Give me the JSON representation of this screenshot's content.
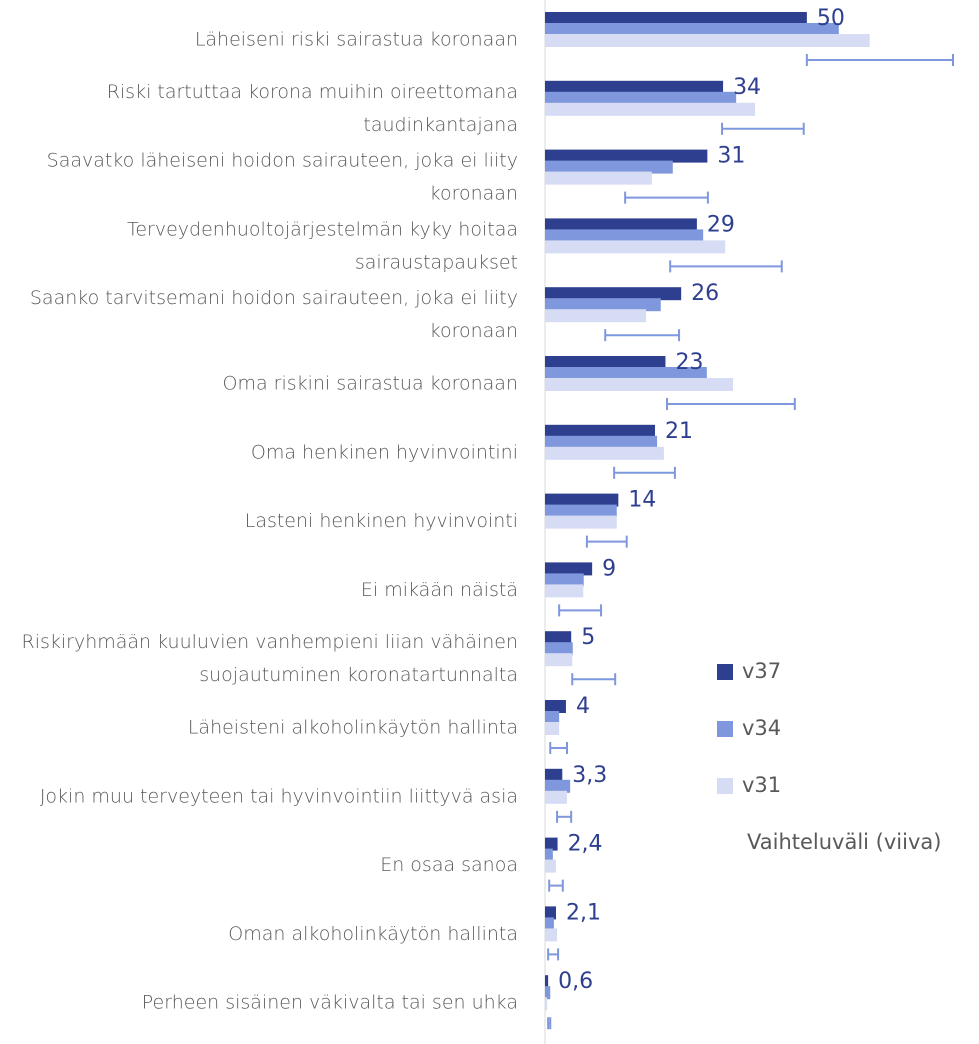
{
  "chart_data": {
    "type": "hbar",
    "categories": [
      "Läheiseni riski sairastua koronaan",
      "Riski tartuttaa korona muihin oireettomana taudinkantajana",
      "Saavatko läheiseni hoidon sairauteen, joka ei liity koronaan",
      "Terveydenhuoltojärjestelmän kyky hoitaa sairaustapaukset",
      "Saanko tarvitsemani hoidon sairauteen, joka ei liity koronaan",
      "Oma riskini sairastua koronaan",
      "Oma henkinen hyvinvointini",
      "Lasteni henkinen hyvinvointi",
      "Ei mikään näistä",
      "Riskiryhmään kuuluvien vanhempieni liian vähäinen suojautuminen koronatartunnalta",
      "Läheisteni alkoholinkäytön hallinta",
      "Jokin muu terveyteen tai hyvinvointiin liittyvä asia",
      "En osaa sanoa",
      "Oman alkoholinkäytön hallinta",
      "Perheen sisäinen väkivalta tai sen uhka"
    ],
    "series": [
      {
        "name": "v37",
        "color": "#2e3f8f",
        "values": [
          50,
          34,
          31,
          29,
          26,
          23,
          21,
          14,
          9,
          5,
          4,
          3.3,
          2.4,
          2.1,
          0.6
        ],
        "value_labels": [
          "50",
          "34",
          "31",
          "29",
          "26",
          "23",
          "21",
          "14",
          "9",
          "5",
          "4",
          "3,3",
          "2,4",
          "2,1",
          "0,6"
        ]
      },
      {
        "name": "v34",
        "color": "#7f97dc",
        "values": [
          56.1,
          36.5,
          24.4,
          30.2,
          22.1,
          30.9,
          21.4,
          13.7,
          7.4,
          5.3,
          2.7,
          4.8,
          1.5,
          1.7,
          1.0
        ]
      },
      {
        "name": "v31",
        "color": "#d5dcf3",
        "values": [
          62.0,
          40.1,
          20.4,
          34.4,
          19.3,
          35.9,
          22.7,
          13.7,
          7.3,
          5.2,
          2.7,
          4.2,
          2.1,
          2.3,
          0.4
        ]
      }
    ],
    "range": {
      "name": "Vaihteluväli (viiva)",
      "color": "#7f97dc",
      "low": [
        50,
        33.8,
        15.3,
        23.9,
        11.5,
        23.3,
        13.2,
        8.0,
        2.7,
        5.2,
        1.0,
        2.3,
        0.8,
        0.6,
        0.6
      ],
      "high": [
        77.9,
        49.4,
        31.1,
        45.2,
        25.6,
        47.7,
        24.8,
        15.6,
        10.7,
        13.4,
        4.2,
        5.0,
        3.4,
        2.5,
        1.0
      ]
    },
    "xlim": [
      0,
      80
    ]
  }
}
